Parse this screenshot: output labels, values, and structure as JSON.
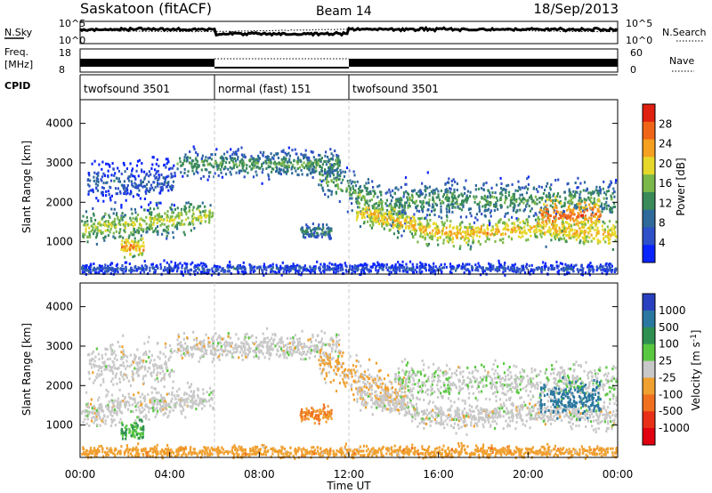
{
  "header": {
    "title": "Saskatoon (fitACF)",
    "beam": "Beam 14",
    "date": "18/Sep/2013"
  },
  "strips": {
    "noise": {
      "left_label": "N.Sky",
      "right_label": "N.Search",
      "left_ticks": [
        "10^5",
        "10^0"
      ],
      "right_ticks": [
        "10^5",
        "10^0"
      ]
    },
    "frequency": {
      "left_label": "Freq.",
      "left_unit": "[MHz]",
      "right_label": "Nave",
      "left_ticks": [
        "18",
        "8"
      ],
      "right_ticks": [
        "60",
        "0"
      ]
    },
    "cpid": {
      "label": "CPID",
      "segments": [
        {
          "label": "twofsound 3501",
          "start": 0,
          "end": 6
        },
        {
          "label": "normal (fast) 151",
          "start": 6,
          "end": 12
        },
        {
          "label": "twofsound 3501",
          "start": 12,
          "end": 24
        }
      ]
    }
  },
  "panels": {
    "xlabel": "Time UT",
    "power": {
      "ylabel": "Slant Range [km]",
      "colorbar_label": "Power [dB]"
    },
    "velocity": {
      "ylabel": "Slant Range [km]",
      "colorbar_label_main": "Velocity  [m s",
      "colorbar_label_exp": "-1",
      "colorbar_label_close": "]"
    }
  },
  "chart_data": {
    "type": "heatmap",
    "x_ticks": [
      "00:00",
      "04:00",
      "08:00",
      "12:00",
      "16:00",
      "20:00",
      "00:00"
    ],
    "x_range_hours": [
      0,
      24
    ],
    "y_ticks": [
      1000,
      2000,
      3000,
      4000
    ],
    "y_range_km": [
      180,
      4600
    ],
    "mode_change_hours": [
      6,
      12
    ],
    "power_scale": {
      "ticks": [
        4,
        8,
        12,
        16,
        20,
        24,
        28
      ],
      "range_db": [
        0,
        32
      ],
      "colors": [
        "#0a24ff",
        "#2e50c8",
        "#2f6a9a",
        "#3a8a5a",
        "#7ab84a",
        "#e6d82a",
        "#f5a020",
        "#f06418",
        "#e02010"
      ]
    },
    "velocity_scale": {
      "tick_labels": [
        "1000",
        "500",
        "100",
        "25",
        "-25",
        "-100",
        "-500",
        "-1000"
      ],
      "colors": [
        "#2840c0",
        "#2a78a0",
        "#2e9050",
        "#58c840",
        "#c8c8c8",
        "#f0a030",
        "#f07020",
        "#e83018",
        "#e00010"
      ]
    },
    "scatter_regions": [
      {
        "name": "early-band",
        "t": [
          0,
          5.9
        ],
        "center_km": 1500,
        "width_km": 650,
        "power_db": 18,
        "vel_mps": 0
      },
      {
        "name": "dip-echo",
        "t": [
          1.8,
          2.8
        ],
        "center_km": 900,
        "width_km": 400,
        "power_db": 24,
        "vel_mps": 60
      },
      {
        "name": "upper-early",
        "t": [
          0.3,
          4.2
        ],
        "center_km": 2550,
        "width_km": 900,
        "power_db": 8,
        "vel_mps": 0
      },
      {
        "name": "far-band",
        "t": [
          4.3,
          11.6
        ],
        "center_km": 3000,
        "width_km": 550,
        "power_db": 14,
        "vel_mps": 0
      },
      {
        "name": "descending-band",
        "t": [
          10.6,
          14.5
        ],
        "center_km": 2200,
        "width_km": 800,
        "power_db": 15,
        "vel_mps": -20
      },
      {
        "name": "late-upper",
        "t": [
          14,
          24
        ],
        "center_km": 2100,
        "width_km": 800,
        "power_db": 14,
        "vel_mps": 10
      },
      {
        "name": "late-band",
        "t": [
          12.3,
          24
        ],
        "center_km": 1350,
        "width_km": 550,
        "power_db": 22,
        "vel_mps": 0
      },
      {
        "name": "patch-10h",
        "t": [
          9.8,
          11.2
        ],
        "center_km": 1300,
        "width_km": 350,
        "power_db": 12,
        "vel_mps": -60
      },
      {
        "name": "near-range",
        "t": [
          0,
          24
        ],
        "center_km": 350,
        "width_km": 250,
        "power_db": 7,
        "vel_mps": -40
      },
      {
        "name": "late-surge",
        "t": [
          20.5,
          23.2
        ],
        "center_km": 1700,
        "width_km": 700,
        "power_db": 26,
        "vel_mps": 350
      }
    ]
  }
}
